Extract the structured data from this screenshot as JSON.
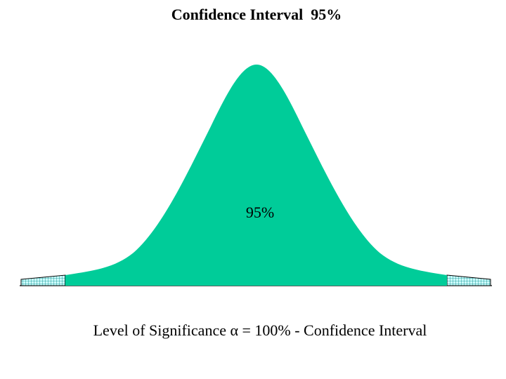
{
  "title": "Confidence Interval  95%",
  "center_label": "95%",
  "caption": "Level of Significance α = 100% - Confidence Interval",
  "colors": {
    "confidence_fill": "#00CC99",
    "tail_fill": "#CCFFFF",
    "tail_grid": "#008080",
    "baseline": "#000000"
  }
}
